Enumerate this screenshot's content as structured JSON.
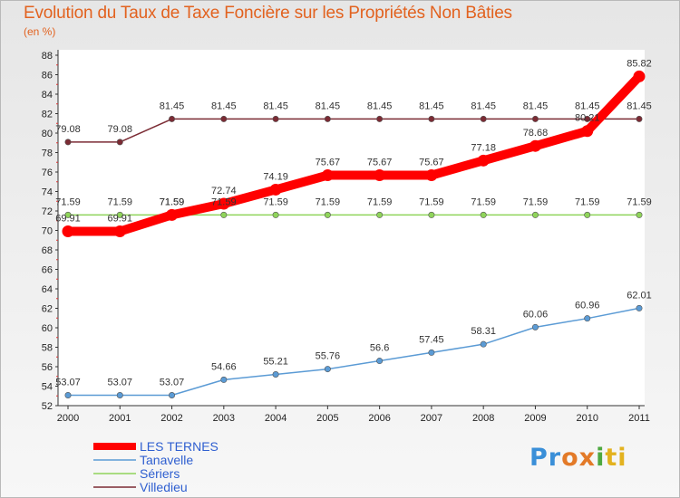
{
  "header": {
    "title": "Evolution du Taux de Taxe Foncière sur les Propriétés Non Bâties",
    "subtitle": "(en %)"
  },
  "logo": {
    "text": "Proxiti",
    "colors": [
      "#3a8fd8",
      "#e37a28",
      "#4ea840",
      "#e3b21f"
    ]
  },
  "chart_data": {
    "type": "line",
    "x": [
      "2000",
      "2001",
      "2002",
      "2003",
      "2004",
      "2005",
      "2006",
      "2007",
      "2008",
      "2009",
      "2010",
      "2011"
    ],
    "ylim": [
      52,
      88
    ],
    "yticks": [
      52,
      54,
      56,
      58,
      60,
      62,
      64,
      66,
      68,
      70,
      72,
      74,
      76,
      78,
      80,
      82,
      84,
      86,
      88
    ],
    "grid": false,
    "legend": "bottom-left",
    "series": [
      {
        "name": "LES TERNES",
        "color": "#ff0000",
        "emphasis": true,
        "values": [
          69.91,
          69.91,
          71.59,
          72.74,
          74.19,
          75.67,
          75.67,
          75.67,
          77.18,
          78.68,
          80.21,
          85.82
        ],
        "labels": [
          "69.91",
          "69.91",
          "71.59",
          "72.74",
          "74.19",
          "75.67",
          "75.67",
          "75.67",
          "77.18",
          "78.68",
          "80.21",
          "85.82"
        ]
      },
      {
        "name": "Tanavelle",
        "color": "#5b9bd5",
        "values": [
          53.07,
          53.07,
          53.07,
          54.66,
          55.21,
          55.76,
          56.6,
          57.45,
          58.31,
          60.06,
          60.96,
          62.01
        ],
        "labels": [
          "53.07",
          "53.07",
          "53.07",
          "54.66",
          "55.21",
          "55.76",
          "56.6",
          "57.45",
          "58.31",
          "60.06",
          "60.96",
          "62.01"
        ]
      },
      {
        "name": "Sériers",
        "color": "#8fd45a",
        "values": [
          71.59,
          71.59,
          71.59,
          71.59,
          71.59,
          71.59,
          71.59,
          71.59,
          71.59,
          71.59,
          71.59,
          71.59
        ],
        "labels": [
          "71.59",
          "71.59",
          "71.59",
          "71.59",
          "71.59",
          "71.59",
          "71.59",
          "71.59",
          "71.59",
          "71.59",
          "71.59",
          "71.59"
        ]
      },
      {
        "name": "Villedieu",
        "color": "#7b2b34",
        "values": [
          79.08,
          79.08,
          81.45,
          81.45,
          81.45,
          81.45,
          81.45,
          81.45,
          81.45,
          81.45,
          81.45,
          81.45
        ],
        "labels": [
          "79.08",
          "79.08",
          "81.45",
          "81.45",
          "81.45",
          "81.45",
          "81.45",
          "81.45",
          "81.45",
          "81.45",
          "81.45",
          "81.45"
        ]
      }
    ]
  }
}
